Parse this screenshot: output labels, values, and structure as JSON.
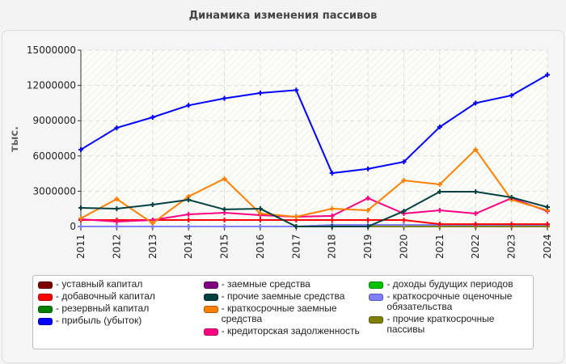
{
  "chart_data": {
    "type": "line",
    "title": "Динамика изменения пассивов",
    "ylabel": "тыс.",
    "xlabel": "",
    "ylim": [
      0,
      15000000
    ],
    "yticks": [
      "0",
      "3000000",
      "6000000",
      "9000000",
      "12000000",
      "15000000"
    ],
    "categories": [
      "2011",
      "2012",
      "2013",
      "2014",
      "2015",
      "2016",
      "2017",
      "2018",
      "2019",
      "2020",
      "2021",
      "2022",
      "2023",
      "2024"
    ],
    "grid": true,
    "legend": "bottom",
    "series": [
      {
        "name": "- уставный капитал",
        "color": "#800000",
        "values": [
          0,
          0,
          0,
          0,
          0,
          0,
          0,
          0,
          0,
          0,
          0,
          0,
          0,
          0
        ]
      },
      {
        "name": "- добавочный капитал",
        "color": "#ff0000",
        "values": [
          550000,
          550000,
          550000,
          550000,
          550000,
          550000,
          550000,
          550000,
          550000,
          550000,
          200000,
          200000,
          200000,
          200000
        ]
      },
      {
        "name": "- резервный капитал",
        "color": "#008000",
        "values": [
          0,
          0,
          0,
          0,
          0,
          0,
          0,
          0,
          0,
          0,
          0,
          0,
          0,
          0
        ]
      },
      {
        "name": "- прибыль (убыток)",
        "color": "#0000ff",
        "values": [
          6540000,
          8390000,
          9290000,
          10300000,
          10900000,
          11350000,
          11600000,
          4540000,
          4900000,
          5500000,
          8460000,
          10500000,
          11150000,
          12900000
        ]
      },
      {
        "name": "- заемные средства",
        "color": "#800080",
        "values": [
          0,
          0,
          0,
          0,
          0,
          0,
          0,
          0,
          0,
          0,
          0,
          0,
          0,
          0
        ]
      },
      {
        "name": "- прочие заемные средства",
        "color": "#004040",
        "values": [
          1580000,
          1510000,
          1860000,
          2270000,
          1450000,
          1510000,
          0,
          0,
          0,
          1300000,
          2960000,
          2960000,
          2480000,
          1650000
        ]
      },
      {
        "name": "- краткосрочные заемные средства",
        "color": "#ff8000",
        "values": [
          690000,
          2340000,
          280000,
          2550000,
          4060000,
          1100000,
          830000,
          1510000,
          1380000,
          3920000,
          3580000,
          6540000,
          2270000,
          1380000
        ]
      },
      {
        "name": "- кредиторская задолженность",
        "color": "#ff0080",
        "values": [
          620000,
          410000,
          550000,
          1030000,
          1170000,
          960000,
          830000,
          900000,
          2410000,
          1100000,
          1380000,
          1100000,
          2410000,
          1300000
        ]
      },
      {
        "name": "- доходы будущих периодов",
        "color": "#00c000",
        "values": [
          0,
          0,
          0,
          0,
          0,
          0,
          0,
          0,
          0,
          0,
          0,
          0,
          0,
          0
        ]
      },
      {
        "name": "- краткосрочные оценочные обязательства",
        "color": "#8080ff",
        "values": [
          0,
          0,
          0,
          0,
          0,
          0,
          0,
          140000,
          140000,
          140000,
          140000,
          140000,
          140000,
          140000
        ]
      },
      {
        "name": "- прочие краткосрочные пассивы",
        "color": "#808000",
        "values": [
          0,
          0,
          0,
          0,
          0,
          0,
          0,
          0,
          0,
          0,
          0,
          0,
          0,
          0
        ]
      }
    ]
  }
}
